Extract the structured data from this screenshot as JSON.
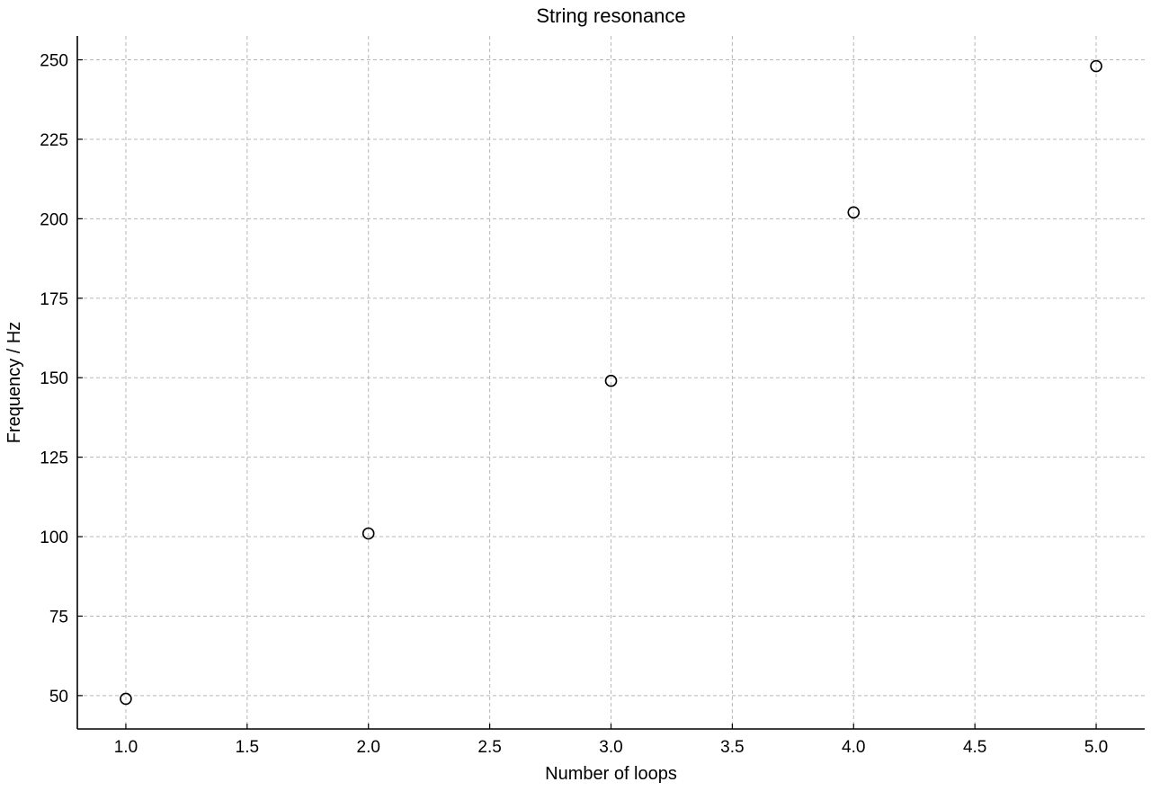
{
  "chart_data": {
    "type": "scatter",
    "title": "String resonance",
    "xlabel": "Number of loops",
    "ylabel": "Frequency / Hz",
    "xlim": [
      0.8,
      5.2
    ],
    "ylim": [
      39.5,
      257.5
    ],
    "xticks": [
      1.0,
      1.5,
      2.0,
      2.5,
      3.0,
      3.5,
      4.0,
      4.5,
      5.0
    ],
    "xtick_labels": [
      "1.0",
      "1.5",
      "2.0",
      "2.5",
      "3.0",
      "3.5",
      "4.0",
      "4.5",
      "5.0"
    ],
    "yticks": [
      50,
      75,
      100,
      125,
      150,
      175,
      200,
      225,
      250
    ],
    "ytick_labels": [
      "50",
      "75",
      "100",
      "125",
      "150",
      "175",
      "200",
      "225",
      "250"
    ],
    "grid": true,
    "series": [
      {
        "x": [
          1,
          2,
          3,
          4,
          5
        ],
        "y": [
          49,
          101,
          149,
          202,
          248
        ],
        "marker": "open-circle",
        "color": "#000000"
      }
    ]
  }
}
